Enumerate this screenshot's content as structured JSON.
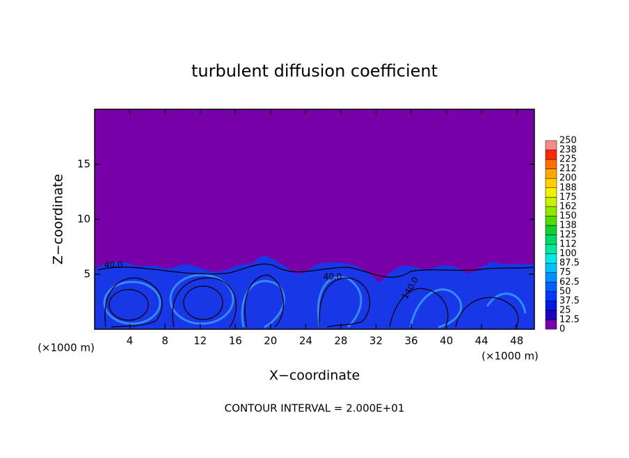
{
  "chart_data": {
    "type": "contour",
    "title": "turbulent diffusion coefficient",
    "xlabel": "X−coordinate",
    "ylabel": "Z−coordinate",
    "x_unit_left": "(×1000 m)",
    "x_unit_right": "(×1000 m)",
    "footer": "CONTOUR INTERVAL = 2.000E+01",
    "contour_labels": [
      "40.0",
      "40.0",
      "140.0"
    ],
    "xlim": [
      0,
      50
    ],
    "ylim": [
      0,
      20
    ],
    "xticks": [
      4,
      8,
      12,
      16,
      20,
      24,
      28,
      32,
      36,
      40,
      44,
      48
    ],
    "yticks": [
      5,
      10,
      15
    ],
    "colorbar": {
      "ticks": [
        0,
        12.5,
        25,
        37.5,
        50,
        62.5,
        75,
        87.5,
        100,
        {
          "value": 112.5,
          "label": "112"
        },
        125,
        {
          "value": 137.5,
          "label": "138"
        },
        150,
        {
          "value": 162.5,
          "label": "162"
        },
        175,
        {
          "value": 187.5,
          "label": "188"
        },
        200,
        {
          "value": 212.5,
          "label": "212"
        },
        225,
        {
          "value": 237.5,
          "label": "238"
        },
        250
      ],
      "colors": [
        "#7800a8",
        "#2000c0",
        "#0018e0",
        "#0038ff",
        "#0060ff",
        "#0090ff",
        "#00c0ff",
        "#00e8e8",
        "#00e8a0",
        "#00d868",
        "#10d030",
        "#50dc00",
        "#90e800",
        "#c8f000",
        "#f0f000",
        "#ffd000",
        "#ffa800",
        "#ff7000",
        "#ff2800",
        "#ff8888"
      ]
    }
  }
}
